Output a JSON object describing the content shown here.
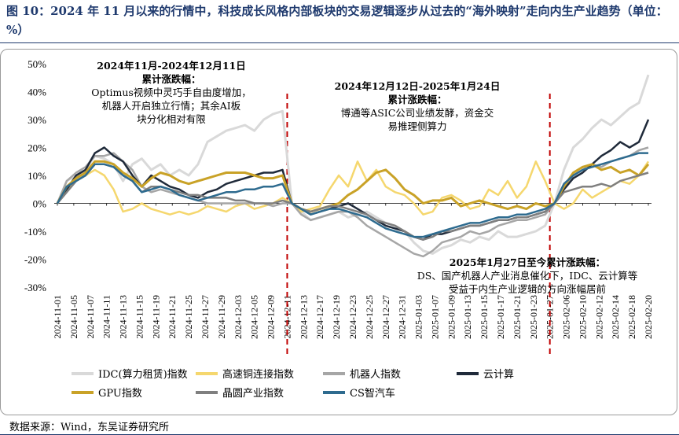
{
  "figure": {
    "title": "图 10：2024 年 11 月以来的行情中，科技成长风格内部板块的交易逻辑逐步从过去的“海外映射”走向内生产业趋势（单位：%）",
    "source": "数据来源：Wind，东吴证券研究所"
  },
  "annotations": [
    {
      "title": "2024年11月-2024年12月11日",
      "subtitle": "累计涨跌幅：",
      "lines": [
        "Optimus视频中灵巧手自由度增加，",
        "机器人开启独立行情；其余AI板",
        "块分化相对有限"
      ]
    },
    {
      "title": "2024年12月12日-2025年1月24日",
      "subtitle": "累计涨跌幅：",
      "lines": [
        "博通等ASIC公司业绩发酵，资金交",
        "易推理侧算力"
      ]
    },
    {
      "title": "2025年1月27日至今累计涨跌幅：",
      "subtitle": "",
      "lines": [
        "DS、国产机器人产业消息催化下，IDC、云计算等",
        "受益于内生产业逻辑的方向涨幅居前"
      ]
    }
  ],
  "colors": {
    "idc": "#d9d9d9",
    "hs": "#f5d76e",
    "robot": "#a6a6a6",
    "cloud": "#1f2a3a",
    "gpu": "#c9a227",
    "wafer": "#7f7f7f",
    "cs": "#2e6b8f",
    "divider": "#c00000"
  },
  "chart_data": {
    "type": "line",
    "ylim": [
      -30,
      50
    ],
    "yticks": [
      "50%",
      "40%",
      "30%",
      "20%",
      "10%",
      "0%",
      "-10%",
      "-20%",
      "-30%"
    ],
    "ytick_values": [
      50,
      40,
      30,
      20,
      10,
      0,
      -10,
      -20,
      -30
    ],
    "x_tick_labels": [
      "2024-11-01",
      "2024-11-05",
      "2024-11-07",
      "2024-11-11",
      "2024-11-13",
      "2024-11-15",
      "2024-11-19",
      "2024-11-21",
      "2024-11-25",
      "2024-11-27",
      "2024-11-29",
      "2024-12-03",
      "2024-12-05",
      "2024-12-09",
      "2024-12-11",
      "2024-12-13",
      "2024-12-17",
      "2024-12-19",
      "2024-12-23",
      "2024-12-25",
      "2024-12-27",
      "2024-12-31",
      "2025-01-03",
      "2025-01-07",
      "2025-01-09",
      "2025-01-13",
      "2025-01-15",
      "2025-01-17",
      "2025-01-21",
      "2025-01-23",
      "2025-01-27",
      "2025-02-06",
      "2025-02-10",
      "2025-02-12",
      "2025-02-14",
      "2025-02-18",
      "2025-02-20"
    ],
    "dividers": [
      "2024-12-11",
      "2025-01-27"
    ],
    "series": [
      {
        "name": "IDC(算力租赁)指数",
        "key": "idc",
        "width": 3,
        "values": [
          0,
          8,
          10,
          12,
          17,
          16,
          14,
          8,
          14,
          16,
          12,
          14,
          10,
          12,
          10,
          14,
          22,
          24,
          26,
          27,
          28,
          26,
          30,
          32,
          33,
          0,
          -3,
          -6,
          -5,
          -4,
          -3,
          -5,
          -4,
          -3,
          -5,
          -7,
          -8,
          -10,
          -14,
          -17,
          -18,
          -16,
          -15,
          -13,
          -14,
          -12,
          -13,
          -10,
          -12,
          -12,
          -11,
          -10,
          -8,
          0,
          12,
          20,
          23,
          27,
          30,
          28,
          31,
          34,
          36,
          46
        ]
      },
      {
        "name": "高速铜连接指数",
        "key": "hs",
        "width": 2.5,
        "values": [
          0,
          5,
          8,
          10,
          12,
          10,
          5,
          -3,
          -2,
          0,
          -2,
          -3,
          -4,
          -3,
          -4,
          -3,
          -1,
          -2,
          -3,
          -1,
          0,
          -2,
          -1,
          0,
          2,
          0,
          -3,
          -2,
          -1,
          5,
          10,
          6,
          15,
          8,
          12,
          6,
          4,
          3,
          0,
          -4,
          -3,
          2,
          3,
          1,
          -2,
          -1,
          5,
          3,
          8,
          2,
          6,
          15,
          8,
          0,
          -2,
          0,
          5,
          2,
          4,
          6,
          8,
          7,
          10,
          15
        ]
      },
      {
        "name": "机器人指数",
        "key": "robot",
        "width": 2.5,
        "values": [
          0,
          8,
          11,
          13,
          17,
          17,
          18,
          15,
          12,
          6,
          4,
          5,
          4,
          3,
          2,
          1,
          0,
          0,
          0,
          0,
          0,
          0,
          0,
          -1,
          0,
          0,
          -4,
          -6,
          -5,
          -4,
          -3,
          -3,
          -5,
          -8,
          -10,
          -12,
          -14,
          -16,
          -18,
          -19,
          -17,
          -14,
          -13,
          -12,
          -10,
          -11,
          -10,
          -8,
          -7,
          -6,
          -6,
          -5,
          -4,
          0,
          6,
          10,
          12,
          14,
          13,
          15,
          16,
          17,
          19,
          20
        ]
      },
      {
        "name": "云计算",
        "key": "cloud",
        "width": 2.5,
        "values": [
          0,
          5,
          10,
          12,
          18,
          20,
          17,
          15,
          10,
          6,
          10,
          8,
          6,
          5,
          3,
          2,
          4,
          5,
          7,
          8,
          9,
          10,
          11,
          11,
          12,
          0,
          -2,
          -4,
          -3,
          -2,
          -1,
          0,
          -2,
          -4,
          -6,
          -8,
          -9,
          -10,
          -12,
          -13,
          -11,
          -11,
          -10,
          -9,
          -8,
          -8,
          -7,
          -6,
          -6,
          -5,
          -5,
          -4,
          -3,
          0,
          5,
          9,
          11,
          14,
          17,
          19,
          22,
          20,
          22,
          30
        ]
      },
      {
        "name": "GPU指数",
        "key": "gpu",
        "width": 3,
        "values": [
          0,
          6,
          9,
          11,
          15,
          15,
          14,
          11,
          9,
          6,
          9,
          11,
          10,
          8,
          7,
          8,
          9,
          10,
          11,
          11,
          11,
          10,
          9,
          9,
          10,
          0,
          -2,
          -3,
          -2,
          -1,
          0,
          3,
          5,
          8,
          11,
          12,
          9,
          5,
          3,
          0,
          1,
          1,
          2,
          -1,
          0,
          1,
          0,
          -1,
          -2,
          -1,
          -2,
          0,
          -1,
          0,
          6,
          11,
          13,
          14,
          12,
          13,
          11,
          12,
          10,
          14
        ]
      },
      {
        "name": "晶圆产业指数",
        "key": "wafer",
        "width": 2.5,
        "values": [
          0,
          4,
          8,
          10,
          14,
          14,
          13,
          10,
          8,
          4,
          6,
          6,
          5,
          4,
          3,
          3,
          2,
          2,
          2,
          1,
          1,
          0,
          0,
          0,
          1,
          0,
          -2,
          -3,
          -2,
          -1,
          -1,
          -2,
          -3,
          -4,
          -6,
          -7,
          -8,
          -10,
          -12,
          -13,
          -12,
          -10,
          -10,
          -9,
          -8,
          -8,
          -7,
          -6,
          -6,
          -5,
          -5,
          -4,
          -3,
          0,
          4,
          5,
          6,
          6,
          7,
          6,
          8,
          9,
          10,
          11
        ]
      },
      {
        "name": "CS智汽车",
        "key": "cs",
        "width": 2.5,
        "values": [
          0,
          6,
          8,
          10,
          14,
          14,
          13,
          10,
          8,
          4,
          5,
          6,
          5,
          3,
          2,
          1,
          2,
          3,
          4,
          4,
          5,
          5,
          6,
          6,
          7,
          0,
          -2,
          -4,
          -3,
          -2,
          -2,
          -3,
          -4,
          -5,
          -7,
          -9,
          -10,
          -11,
          -12,
          -12,
          -11,
          -10,
          -9,
          -8,
          -7,
          -7,
          -6,
          -5,
          -5,
          -4,
          -4,
          -3,
          -2,
          0,
          7,
          10,
          12,
          13,
          14,
          15,
          16,
          17,
          18,
          18
        ]
      }
    ],
    "legend": [
      [
        "IDC(算力租赁)指数",
        "高速铜连接指数",
        "机器人指数",
        "云计算"
      ],
      [
        "GPU指数",
        "晶圆产业指数",
        "CS智汽车"
      ]
    ]
  }
}
